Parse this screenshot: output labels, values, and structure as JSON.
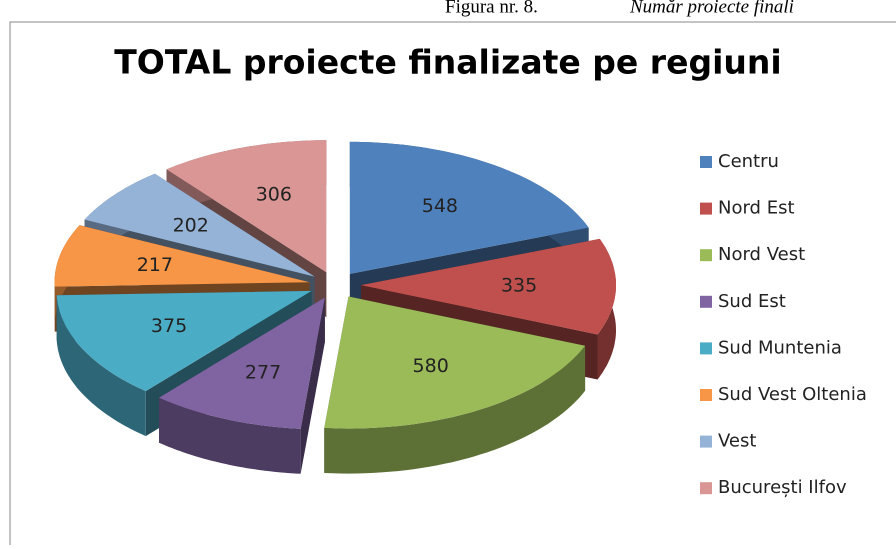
{
  "caption": {
    "number": "Figura nr. 8.",
    "text": "Număr proiecte finali"
  },
  "chart_data": {
    "type": "pie3d",
    "title": "TOTAL proiecte finalizate pe regiuni",
    "categories": [
      "Centru",
      "Nord Est",
      "Nord Vest",
      "Sud Est",
      "Sud Muntenia",
      "Sud Vest Oltenia",
      "Vest",
      "București Ilfov"
    ],
    "values": [
      548,
      335,
      580,
      277,
      375,
      217,
      202,
      306
    ],
    "colors": [
      "#4f81bd",
      "#c0504d",
      "#9bbb59",
      "#8064a2",
      "#4bacc6",
      "#f79646",
      "#95b3d7",
      "#d99694"
    ],
    "legend": "right"
  }
}
